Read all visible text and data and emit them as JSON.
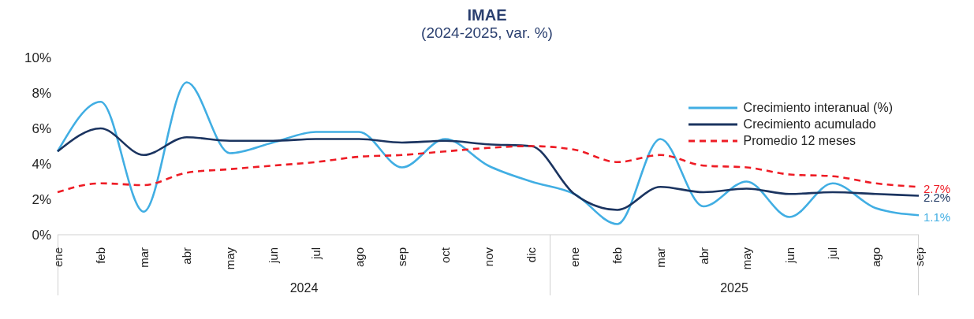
{
  "chart_data": {
    "type": "line",
    "title": "IMAE",
    "subtitle": "(2024-2025, var. %)",
    "categories": [
      "ene",
      "feb",
      "mar",
      "abr",
      "may",
      "jun",
      "jul",
      "ago",
      "sep",
      "oct",
      "nov",
      "dic",
      "ene",
      "feb",
      "mar",
      "abr",
      "may",
      "jun",
      "jul",
      "ago",
      "sep"
    ],
    "annotations": [
      "2024",
      "2025"
    ],
    "series": [
      {
        "name": "Crecimiento interanual (%)",
        "color": "#41aee3",
        "line_style": "solid",
        "values": [
          4.7,
          7.5,
          1.3,
          8.6,
          4.6,
          5.2,
          5.8,
          5.8,
          3.8,
          5.4,
          3.9,
          3.0,
          2.3,
          0.6,
          5.4,
          1.6,
          3.0,
          1.0,
          2.9,
          1.5,
          1.1
        ],
        "value_labels": [
          null,
          null,
          null,
          null,
          null,
          null,
          null,
          null,
          null,
          null,
          null,
          null,
          null,
          null,
          null,
          null,
          null,
          null,
          null,
          null,
          "1.1%"
        ]
      },
      {
        "name": "Crecimiento acumulado",
        "color": "#1b3460",
        "line_style": "solid",
        "values": [
          4.7,
          6.0,
          4.5,
          5.5,
          5.3,
          5.3,
          5.4,
          5.4,
          5.2,
          5.3,
          5.1,
          5.0,
          2.3,
          1.4,
          2.7,
          2.4,
          2.6,
          2.3,
          2.4,
          2.3,
          2.2
        ],
        "value_labels": [
          null,
          null,
          null,
          null,
          null,
          null,
          null,
          null,
          null,
          null,
          null,
          null,
          null,
          null,
          null,
          null,
          null,
          null,
          null,
          null,
          "2.2%"
        ]
      },
      {
        "name": "Promedio 12 meses",
        "color": "#ee1c25",
        "line_style": "dashed",
        "values": [
          2.4,
          2.9,
          2.8,
          3.5,
          3.7,
          3.9,
          4.1,
          4.4,
          4.5,
          4.7,
          4.9,
          5.0,
          4.8,
          4.1,
          4.5,
          3.9,
          3.8,
          3.4,
          3.3,
          2.9,
          2.7
        ],
        "value_labels": [
          null,
          null,
          null,
          null,
          null,
          null,
          null,
          null,
          null,
          null,
          null,
          null,
          null,
          null,
          null,
          null,
          null,
          null,
          null,
          null,
          "2.7%"
        ]
      }
    ],
    "ylim": [
      0,
      10
    ],
    "yticks": [
      {
        "value": 0,
        "label": "0%"
      },
      {
        "value": 2,
        "label": "2%"
      },
      {
        "value": 4,
        "label": "4%"
      },
      {
        "value": 6,
        "label": "6%"
      },
      {
        "value": 8,
        "label": "8%"
      },
      {
        "value": 10,
        "label": "10%"
      }
    ],
    "grid": false,
    "legend": "top right",
    "marker": "none"
  }
}
